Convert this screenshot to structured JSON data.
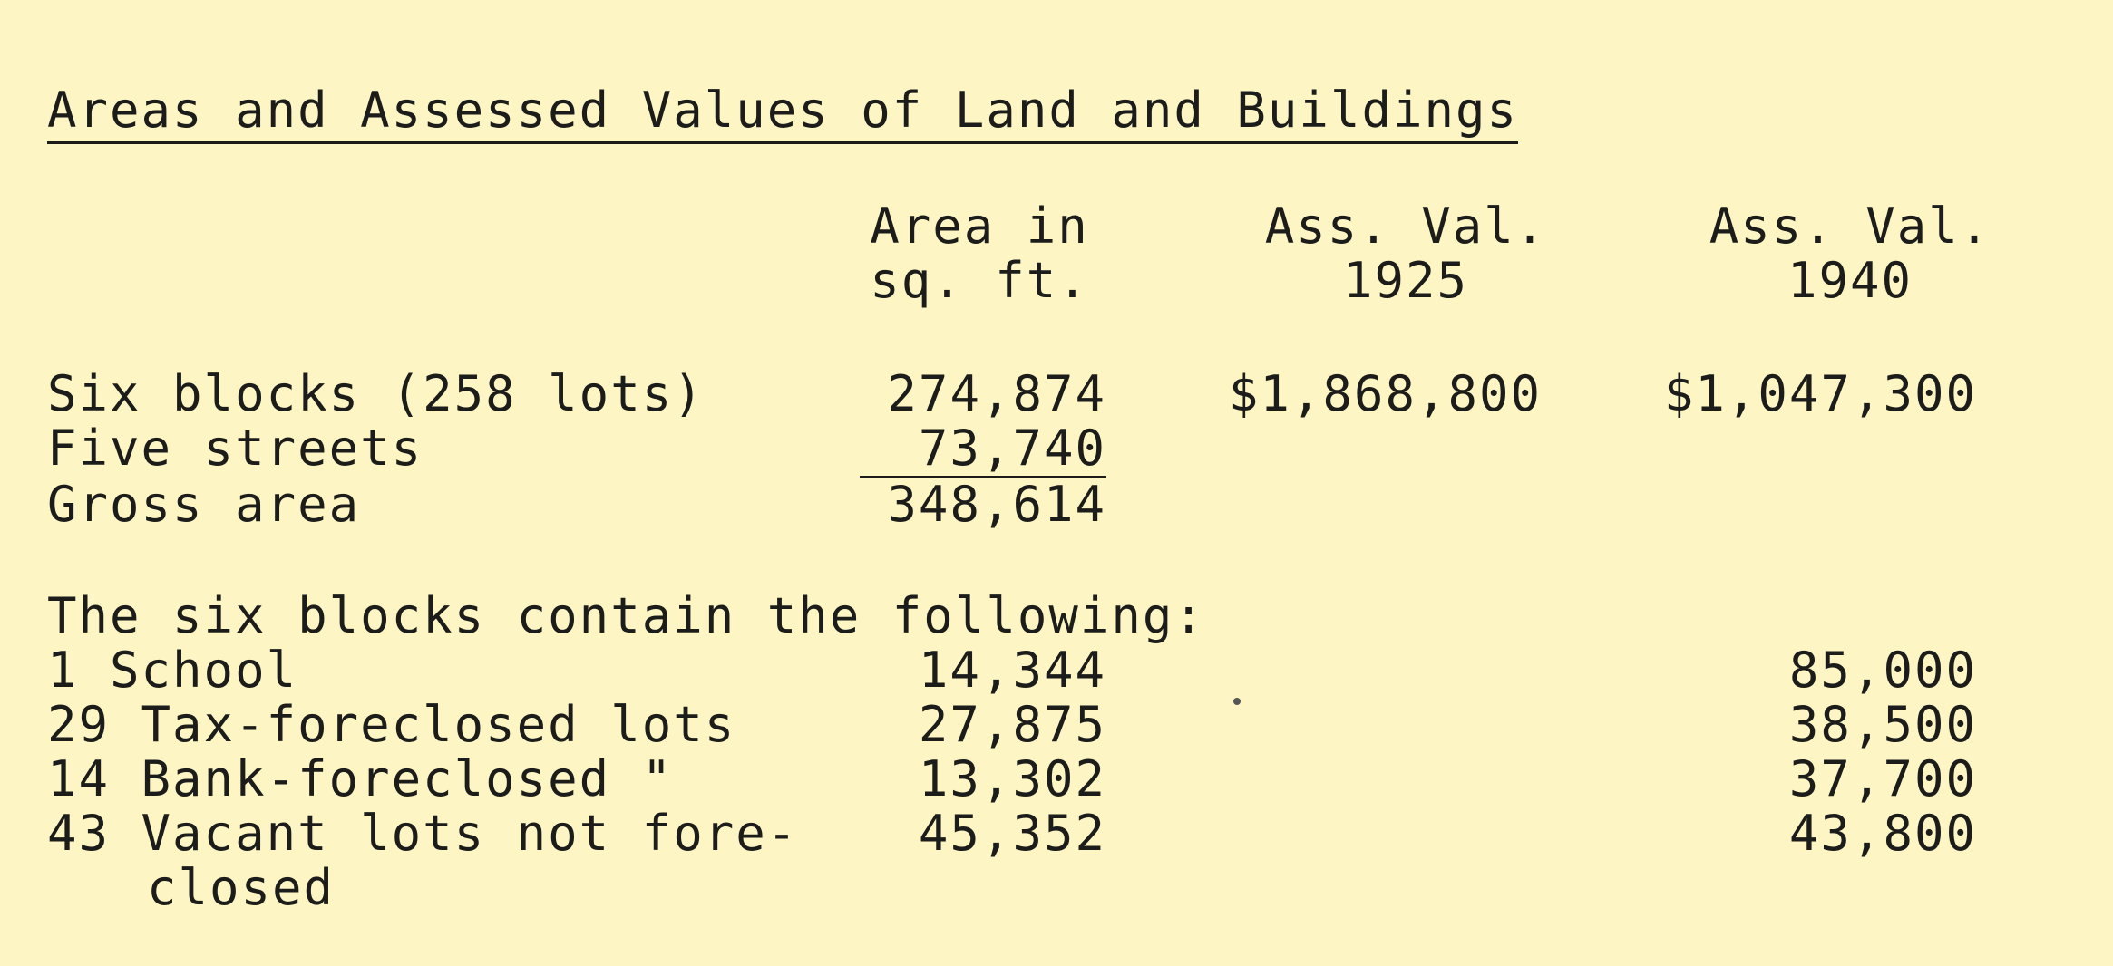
{
  "title": "Areas and Assessed Values of Land and Buildings",
  "headers": {
    "area_line1": "Area in",
    "area_line2": "sq. ft.",
    "val1925_line1": "Ass. Val.",
    "val1925_line2": "1925",
    "val1940_line1": "Ass. Val.",
    "val1940_line2": "1940"
  },
  "summary_rows": [
    {
      "label": "Six blocks (258 lots)",
      "area": "274,874",
      "val1925": "$1,868,800",
      "val1940": "$1,047,300"
    },
    {
      "label": "Five streets",
      "area": "73,740"
    },
    {
      "label": "Gross area",
      "area": "348,614"
    }
  ],
  "section_heading": "The six blocks contain the following:",
  "detail_rows": [
    {
      "label": "1 School",
      "area": "14,344",
      "val1940": "85,000"
    },
    {
      "label": "29 Tax-foreclosed lots",
      "area": "27,875",
      "val1940": "38,500"
    },
    {
      "label": "14 Bank-foreclosed \"",
      "area": "13,302",
      "val1940": "37,700"
    },
    {
      "label": "43 Vacant lots not fore-",
      "label_cont": "closed",
      "area": "45,352",
      "val1940": "43,800"
    }
  ]
}
